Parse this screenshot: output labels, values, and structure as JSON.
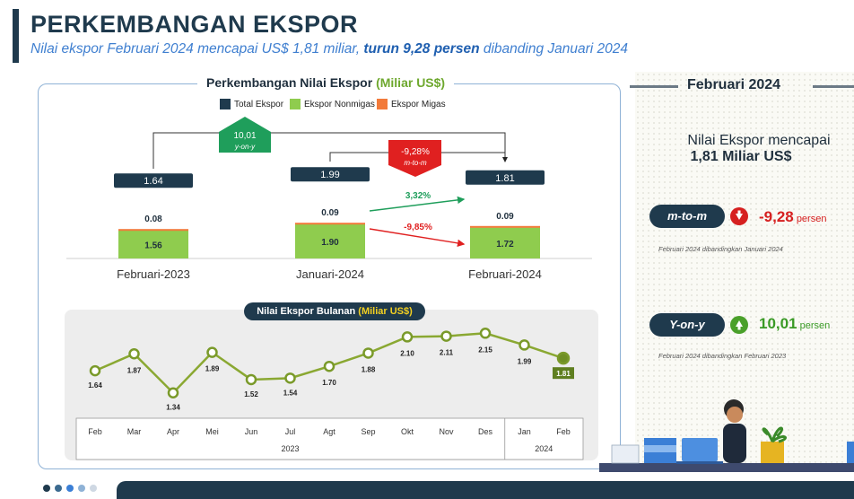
{
  "header": {
    "title": "PERKEMBANGAN EKSPOR",
    "subtitle_pre": "Nilai ekspor Februari 2024 mencapai US$ 1,81 miliar,",
    "subtitle_bold": "turun 9,28 persen",
    "subtitle_post": "dibanding Januari 2024"
  },
  "panel": {
    "title": "Perkembangan Nilai Ekspor",
    "unit": "(Miliar US$)",
    "legend": [
      "Total Ekspor",
      "Ekspor Nonmigas",
      "Ekspor Migas"
    ],
    "colors": {
      "total": "#1f3a4d",
      "nonmigas": "#8fcc4e",
      "migas": "#f27a3a",
      "up": "#1f9e5b",
      "down": "#e02020"
    },
    "yoy_badge": {
      "value": "10,01",
      "label": "y-on-y"
    },
    "mtm_badge": {
      "value": "-9,28%",
      "label": "m-to-m"
    },
    "nonmigas_change": "3,32%",
    "migas_change": "-9,85%"
  },
  "monthly_title": {
    "text": "Nilai Ekspor Bulanan",
    "unit": "(Miliar US$)"
  },
  "chart_data": [
    {
      "type": "bar",
      "stacked": true,
      "categories": [
        "Februari-2023",
        "Januari-2024",
        "Februari-2024"
      ],
      "series": [
        {
          "name": "Ekspor Nonmigas",
          "values": [
            1.56,
            1.9,
            1.72
          ]
        },
        {
          "name": "Ekspor Migas",
          "values": [
            0.08,
            0.09,
            0.09
          ]
        }
      ],
      "totals_name": "Total Ekspor",
      "totals": [
        1.64,
        1.99,
        1.81
      ],
      "title": "Perkembangan Nilai Ekspor (Miliar US$)"
    },
    {
      "type": "line",
      "title": "Nilai Ekspor Bulanan (Miliar US$)",
      "x": [
        "Feb",
        "Mar",
        "Apr",
        "Mei",
        "Jun",
        "Jul",
        "Agt",
        "Sep",
        "Okt",
        "Nov",
        "Des",
        "Jan",
        "Feb"
      ],
      "values": [
        1.64,
        1.87,
        1.34,
        1.89,
        1.52,
        1.54,
        1.7,
        1.88,
        2.1,
        2.11,
        2.15,
        1.99,
        1.81
      ],
      "year_groups": [
        {
          "label": "2023",
          "count": 11
        },
        {
          "label": "2024",
          "count": 2
        }
      ]
    }
  ],
  "side": {
    "heading": "Februari 2024",
    "line1": "Nilai Ekspor mencapai",
    "line2": "1,81 Miliar US$",
    "mtm": {
      "pill": "m-to-m",
      "value": "-9,28",
      "unit": "persen",
      "note": "Februari 2024 dibandingkan Januari 2024"
    },
    "yoy": {
      "pill": "Y-on-y",
      "value": "10,01",
      "unit": "persen",
      "note": "Februari 2024 dibandingkan Februari 2023"
    }
  }
}
